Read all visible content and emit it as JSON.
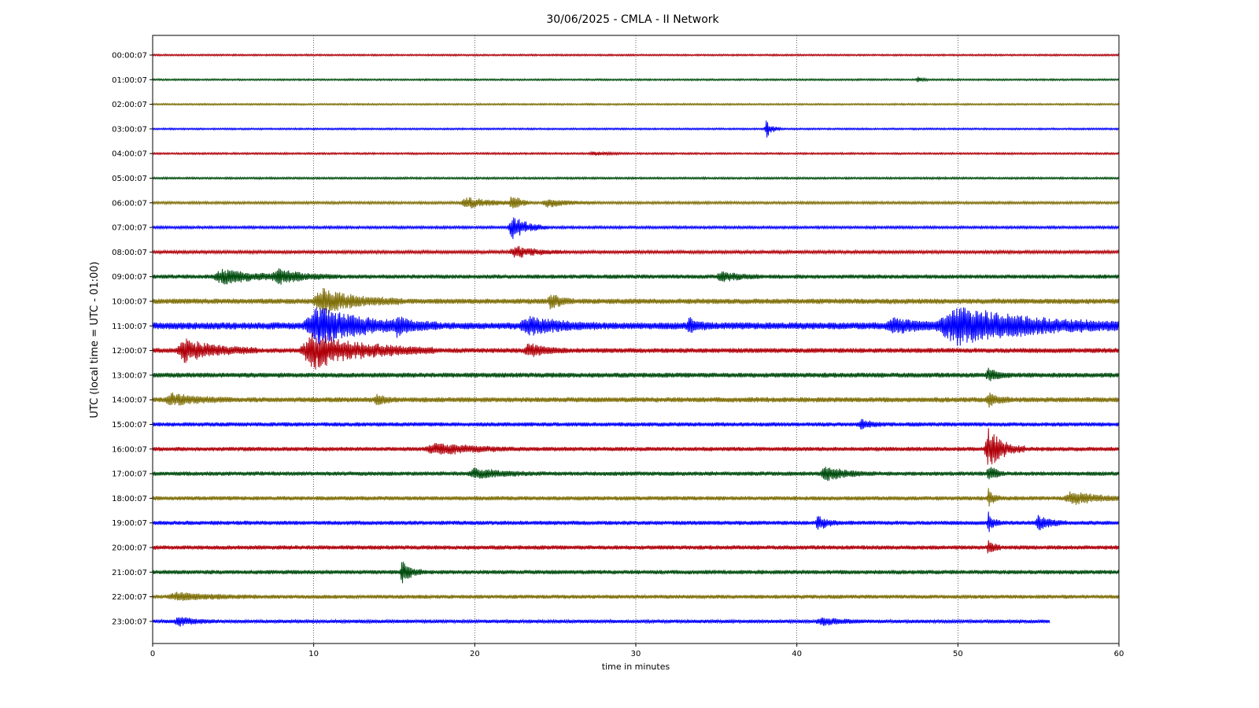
{
  "chart_data": {
    "type": "line",
    "title": "30/06/2025 - CMLA - II Network",
    "xlabel": "time in minutes",
    "ylabel": "UTC (local time = UTC - 01:00)",
    "xlim": [
      0,
      60
    ],
    "xticks": [
      "0",
      "10",
      "20",
      "30",
      "40",
      "50",
      "60"
    ],
    "grid": "vertical dotted lines at x ticks",
    "colors": [
      "#b0000a",
      "#004d0f",
      "#80700a",
      "#0000ff"
    ],
    "rows": [
      {
        "label": "00:00:07",
        "color": "#b0000a",
        "end": 60,
        "noise": 0.12,
        "events": []
      },
      {
        "label": "01:00:07",
        "color": "#004d0f",
        "end": 60,
        "noise": 0.12,
        "events": [
          {
            "t": 47.5,
            "amp": 0.35,
            "dur": 0.3
          }
        ]
      },
      {
        "label": "02:00:07",
        "color": "#80700a",
        "end": 60,
        "noise": 0.12,
        "events": []
      },
      {
        "label": "03:00:07",
        "color": "#0000ff",
        "end": 60,
        "noise": 0.12,
        "events": [
          {
            "t": 38.1,
            "amp": 1.4,
            "dur": 0.35
          }
        ]
      },
      {
        "label": "04:00:07",
        "color": "#b0000a",
        "end": 60,
        "noise": 0.13,
        "events": [
          {
            "t": 27.3,
            "amp": 0.3,
            "dur": 0.8
          }
        ]
      },
      {
        "label": "05:00:07",
        "color": "#004d0f",
        "end": 60,
        "noise": 0.14,
        "events": []
      },
      {
        "label": "06:00:07",
        "color": "#80700a",
        "end": 60,
        "noise": 0.18,
        "events": [
          {
            "t": 19.5,
            "amp": 0.8,
            "dur": 1.5
          },
          {
            "t": 22.3,
            "amp": 1.2,
            "dur": 0.5
          },
          {
            "t": 24.5,
            "amp": 0.6,
            "dur": 1.2
          }
        ]
      },
      {
        "label": "07:00:07",
        "color": "#0000ff",
        "end": 60,
        "noise": 0.18,
        "events": [
          {
            "t": 22.3,
            "amp": 1.8,
            "dur": 0.9
          }
        ]
      },
      {
        "label": "08:00:07",
        "color": "#b0000a",
        "end": 60,
        "noise": 0.22,
        "events": [
          {
            "t": 22.5,
            "amp": 0.9,
            "dur": 1.2
          }
        ]
      },
      {
        "label": "09:00:07",
        "color": "#004d0f",
        "end": 60,
        "noise": 0.3,
        "events": [
          {
            "t": 4.3,
            "amp": 1.0,
            "dur": 2.0
          },
          {
            "t": 7.8,
            "amp": 0.9,
            "dur": 1.5
          },
          {
            "t": 35.3,
            "amp": 0.7,
            "dur": 1.0
          }
        ]
      },
      {
        "label": "10:00:07",
        "color": "#80700a",
        "end": 60,
        "noise": 0.38,
        "events": [
          {
            "t": 10.5,
            "amp": 1.8,
            "dur": 2.0
          },
          {
            "t": 24.7,
            "amp": 1.0,
            "dur": 0.6
          }
        ]
      },
      {
        "label": "11:00:07",
        "color": "#0000ff",
        "end": 60,
        "noise": 0.5,
        "events": [
          {
            "t": 10.2,
            "amp": 2.5,
            "dur": 3.0
          },
          {
            "t": 15.2,
            "amp": 1.2,
            "dur": 0.4
          },
          {
            "t": 23.3,
            "amp": 1.2,
            "dur": 1.8
          },
          {
            "t": 33.3,
            "amp": 0.9,
            "dur": 0.6
          },
          {
            "t": 46.0,
            "amp": 0.9,
            "dur": 1.8
          },
          {
            "t": 50.0,
            "amp": 2.6,
            "dur": 4.5
          }
        ]
      },
      {
        "label": "12:00:07",
        "color": "#b0000a",
        "end": 60,
        "noise": 0.35,
        "events": [
          {
            "t": 2.0,
            "amp": 1.6,
            "dur": 1.8
          },
          {
            "t": 10.0,
            "amp": 2.5,
            "dur": 3.0
          },
          {
            "t": 23.3,
            "amp": 0.9,
            "dur": 1.0
          }
        ]
      },
      {
        "label": "13:00:07",
        "color": "#004d0f",
        "end": 60,
        "noise": 0.35,
        "events": [
          {
            "t": 51.9,
            "amp": 0.8,
            "dur": 0.6
          }
        ]
      },
      {
        "label": "14:00:07",
        "color": "#80700a",
        "end": 60,
        "noise": 0.36,
        "events": [
          {
            "t": 1.2,
            "amp": 0.8,
            "dur": 1.5
          },
          {
            "t": 13.9,
            "amp": 0.8,
            "dur": 0.5
          },
          {
            "t": 51.9,
            "amp": 0.9,
            "dur": 0.6
          }
        ]
      },
      {
        "label": "15:00:07",
        "color": "#0000ff",
        "end": 60,
        "noise": 0.3,
        "events": [
          {
            "t": 44.0,
            "amp": 0.6,
            "dur": 0.6
          }
        ]
      },
      {
        "label": "16:00:07",
        "color": "#b0000a",
        "end": 60,
        "noise": 0.3,
        "events": [
          {
            "t": 17.5,
            "amp": 0.9,
            "dur": 2.0
          },
          {
            "t": 51.9,
            "amp": 2.8,
            "dur": 0.9
          }
        ]
      },
      {
        "label": "17:00:07",
        "color": "#004d0f",
        "end": 60,
        "noise": 0.3,
        "events": [
          {
            "t": 20.0,
            "amp": 0.7,
            "dur": 1.5
          },
          {
            "t": 41.8,
            "amp": 1.0,
            "dur": 1.2
          },
          {
            "t": 51.9,
            "amp": 1.4,
            "dur": 0.4
          }
        ]
      },
      {
        "label": "18:00:07",
        "color": "#80700a",
        "end": 60,
        "noise": 0.3,
        "events": [
          {
            "t": 51.9,
            "amp": 1.3,
            "dur": 0.3
          },
          {
            "t": 57.0,
            "amp": 0.9,
            "dur": 1.5
          }
        ]
      },
      {
        "label": "19:00:07",
        "color": "#0000ff",
        "end": 60,
        "noise": 0.3,
        "events": [
          {
            "t": 41.3,
            "amp": 1.1,
            "dur": 0.5
          },
          {
            "t": 51.9,
            "amp": 1.5,
            "dur": 0.3
          },
          {
            "t": 55.0,
            "amp": 1.0,
            "dur": 0.7
          }
        ]
      },
      {
        "label": "20:00:07",
        "color": "#b0000a",
        "end": 60,
        "noise": 0.3,
        "events": [
          {
            "t": 51.9,
            "amp": 1.4,
            "dur": 0.3
          }
        ]
      },
      {
        "label": "21:00:07",
        "color": "#004d0f",
        "end": 60,
        "noise": 0.3,
        "events": [
          {
            "t": 15.5,
            "amp": 1.5,
            "dur": 0.5
          }
        ]
      },
      {
        "label": "22:00:07",
        "color": "#80700a",
        "end": 60,
        "noise": 0.28,
        "events": [
          {
            "t": 1.5,
            "amp": 0.5,
            "dur": 2.0
          }
        ]
      },
      {
        "label": "23:00:07",
        "color": "#0000ff",
        "end": 55.7,
        "noise": 0.25,
        "events": [
          {
            "t": 1.6,
            "amp": 0.6,
            "dur": 1.0
          },
          {
            "t": 41.5,
            "amp": 0.5,
            "dur": 1.2
          }
        ]
      }
    ]
  }
}
